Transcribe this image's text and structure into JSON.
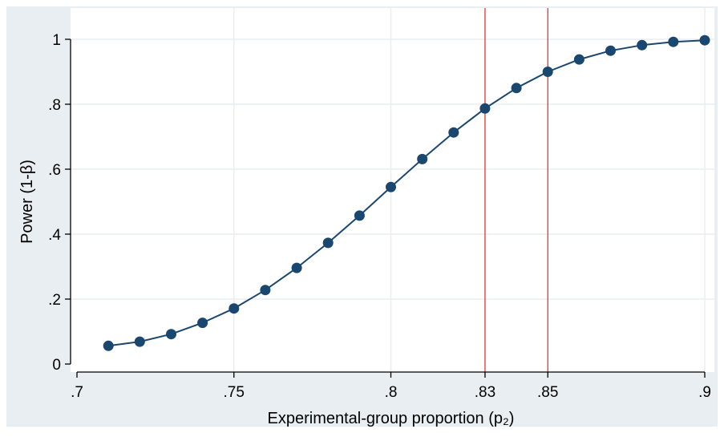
{
  "chart_data": {
    "type": "line",
    "title": "",
    "xlabel": "Experimental-group proportion (p₂)",
    "ylabel": "Power (1-β)",
    "xlim": [
      0.7,
      0.9
    ],
    "ylim": [
      0,
      1
    ],
    "x_ticks": [
      {
        "value": 0.7,
        "label": ".7"
      },
      {
        "value": 0.75,
        "label": ".75"
      },
      {
        "value": 0.8,
        "label": ".8"
      },
      {
        "value": 0.83,
        "label": ".83"
      },
      {
        "value": 0.85,
        "label": ".85"
      },
      {
        "value": 0.9,
        "label": ".9"
      }
    ],
    "y_ticks": [
      {
        "value": 0,
        "label": "0"
      },
      {
        "value": 0.2,
        "label": ".2"
      },
      {
        "value": 0.4,
        "label": ".4"
      },
      {
        "value": 0.6,
        "label": ".6"
      },
      {
        "value": 0.8,
        "label": ".8"
      },
      {
        "value": 1,
        "label": "1"
      }
    ],
    "grid": true,
    "reference_lines_x": [
      0.83,
      0.85
    ],
    "series": [
      {
        "x": [
          0.71,
          0.72,
          0.73,
          0.74,
          0.75,
          0.76,
          0.77,
          0.78,
          0.79,
          0.8,
          0.81,
          0.82,
          0.83,
          0.84,
          0.85,
          0.86,
          0.87,
          0.88,
          0.89,
          0.9
        ],
        "y": [
          0.056,
          0.069,
          0.092,
          0.127,
          0.171,
          0.228,
          0.296,
          0.373,
          0.457,
          0.545,
          0.631,
          0.713,
          0.787,
          0.85,
          0.9,
          0.938,
          0.965,
          0.982,
          0.992,
          0.997
        ]
      }
    ],
    "colors": {
      "background": "#e8eef1",
      "plot_area": "#ffffff",
      "grid": "#e8eef1",
      "line": "#1a476f",
      "marker": "#1a476f",
      "reference_line": "#e53235",
      "axis": "#000000"
    }
  }
}
